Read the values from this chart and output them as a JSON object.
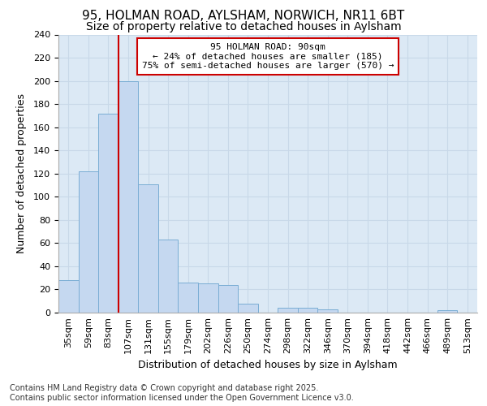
{
  "title1": "95, HOLMAN ROAD, AYLSHAM, NORWICH, NR11 6BT",
  "title2": "Size of property relative to detached houses in Aylsham",
  "xlabel": "Distribution of detached houses by size in Aylsham",
  "ylabel": "Number of detached properties",
  "categories": [
    "35sqm",
    "59sqm",
    "83sqm",
    "107sqm",
    "131sqm",
    "155sqm",
    "179sqm",
    "202sqm",
    "226sqm",
    "250sqm",
    "274sqm",
    "298sqm",
    "322sqm",
    "346sqm",
    "370sqm",
    "394sqm",
    "418sqm",
    "442sqm",
    "466sqm",
    "489sqm",
    "513sqm"
  ],
  "values": [
    28,
    122,
    172,
    200,
    111,
    63,
    26,
    25,
    24,
    8,
    0,
    4,
    4,
    3,
    0,
    0,
    0,
    0,
    0,
    2,
    0
  ],
  "bar_color": "#c5d8f0",
  "bar_edge_color": "#7aadd4",
  "fig_background_color": "#ffffff",
  "plot_background_color": "#dce9f5",
  "grid_color": "#c8d8e8",
  "vline_index": 2,
  "vline_color": "#cc0000",
  "annotation_text": "95 HOLMAN ROAD: 90sqm\n← 24% of detached houses are smaller (185)\n75% of semi-detached houses are larger (570) →",
  "annotation_box_color": "#ffffff",
  "annotation_box_edge": "#cc0000",
  "footer_text": "Contains HM Land Registry data © Crown copyright and database right 2025.\nContains public sector information licensed under the Open Government Licence v3.0.",
  "ylim": [
    0,
    240
  ],
  "yticks": [
    0,
    20,
    40,
    60,
    80,
    100,
    120,
    140,
    160,
    180,
    200,
    220,
    240
  ],
  "title1_fontsize": 11,
  "title2_fontsize": 10,
  "xlabel_fontsize": 9,
  "ylabel_fontsize": 9,
  "xtick_fontsize": 8,
  "ytick_fontsize": 8,
  "annotation_fontsize": 8,
  "footer_fontsize": 7
}
